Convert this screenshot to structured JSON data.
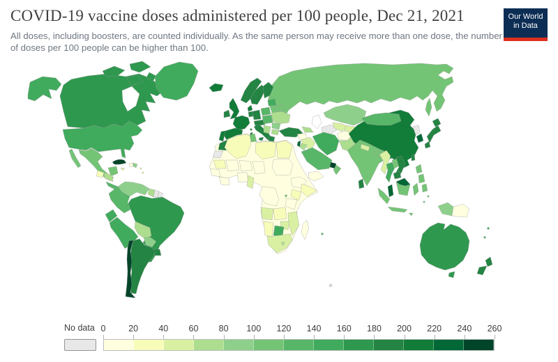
{
  "header": {
    "title": "COVID-19 vaccine doses administered per 100 people, Dec 21, 2021",
    "subtitle": "All doses, including boosters, are counted individually. As the same person may receive more than one dose, the number of doses per 100 people can be higher than 100.",
    "logo": {
      "line1": "Our World",
      "line2": "in Data",
      "bg_color": "#0d2e54",
      "accent_color": "#dc2f1f"
    }
  },
  "legend": {
    "no_data_label": "No data",
    "no_data_color": "#e8e8e8",
    "ticks": [
      "0",
      "20",
      "40",
      "60",
      "80",
      "100",
      "120",
      "140",
      "160",
      "180",
      "200",
      "220",
      "240",
      "260"
    ],
    "bin_colors": [
      "#ffffe0",
      "#f7fcb9",
      "#d9f0a3",
      "#addd8e",
      "#8ed08b",
      "#74c476",
      "#58b668",
      "#41ab5d",
      "#2f984f",
      "#238443",
      "#127c39",
      "#006837",
      "#004529"
    ]
  },
  "chart_data": {
    "type": "choropleth",
    "title": "COVID-19 vaccine doses administered per 100 people",
    "date": "Dec 21, 2021",
    "unit": "doses per 100 people",
    "scale": {
      "min": 0,
      "max": 260,
      "step": 20,
      "colors": [
        "#ffffe0",
        "#f7fcb9",
        "#d9f0a3",
        "#addd8e",
        "#8ed08b",
        "#74c476",
        "#58b668",
        "#41ab5d",
        "#2f984f",
        "#238443",
        "#127c39",
        "#006837",
        "#004529"
      ],
      "no_data_color": "#e8e8e8"
    },
    "regions": [
      {
        "id": "canada",
        "name": "Canada",
        "value": 170,
        "color": "#2f984f"
      },
      {
        "id": "usa",
        "name": "United States",
        "value": 150,
        "color": "#41ab5d"
      },
      {
        "id": "greenland",
        "name": "Greenland",
        "value": 150,
        "color": "#41ab5d"
      },
      {
        "id": "mexico",
        "name": "Mexico",
        "value": 110,
        "color": "#74c476"
      },
      {
        "id": "guatemala",
        "name": "Guatemala",
        "value": 30,
        "color": "#f7fcb9"
      },
      {
        "id": "honduras_nicaragua",
        "name": "Honduras & Nicaragua",
        "value": 70,
        "color": "#addd8e"
      },
      {
        "id": "costa_rica_panama",
        "name": "Costa Rica & Panama",
        "value": 130,
        "color": "#58b668"
      },
      {
        "id": "cuba",
        "name": "Cuba",
        "value": 250,
        "color": "#004529"
      },
      {
        "id": "jamaica",
        "name": "Jamaica",
        "value": 50,
        "color": "#d9f0a3"
      },
      {
        "id": "haiti",
        "name": "Haiti",
        "value": 10,
        "color": "#ffffe0"
      },
      {
        "id": "dominican_republic",
        "name": "Dominican Republic",
        "value": 90,
        "color": "#8ed08b"
      },
      {
        "id": "lesser_antilles",
        "name": "Lesser Antilles",
        "value": 50,
        "color": "#d9f0a3"
      },
      {
        "id": "venezuela",
        "name": "Venezuela",
        "value": 90,
        "color": "#8ed08b"
      },
      {
        "id": "colombia",
        "name": "Colombia",
        "value": 130,
        "color": "#58b668"
      },
      {
        "id": "guyana",
        "name": "Guyana",
        "value": 70,
        "color": "#addd8e"
      },
      {
        "id": "suriname",
        "name": "Suriname",
        "value": null,
        "color": "#e8e8e8"
      },
      {
        "id": "french_guiana",
        "name": "French Guiana",
        "value": null,
        "color": "#e8e8e8"
      },
      {
        "id": "ecuador",
        "name": "Ecuador",
        "value": 150,
        "color": "#41ab5d"
      },
      {
        "id": "peru",
        "name": "Peru",
        "value": 150,
        "color": "#41ab5d"
      },
      {
        "id": "brazil",
        "name": "Brazil",
        "value": 170,
        "color": "#2f984f"
      },
      {
        "id": "bolivia",
        "name": "Bolivia",
        "value": 70,
        "color": "#addd8e"
      },
      {
        "id": "paraguay",
        "name": "Paraguay",
        "value": 90,
        "color": "#8ed08b"
      },
      {
        "id": "chile",
        "name": "Chile",
        "value": 250,
        "color": "#004529"
      },
      {
        "id": "argentina",
        "name": "Argentina",
        "value": 190,
        "color": "#238443"
      },
      {
        "id": "uruguay",
        "name": "Uruguay",
        "value": 190,
        "color": "#238443"
      },
      {
        "id": "iceland",
        "name": "Iceland",
        "value": 210,
        "color": "#127c39"
      },
      {
        "id": "uk",
        "name": "United Kingdom",
        "value": 210,
        "color": "#127c39"
      },
      {
        "id": "ireland",
        "name": "Ireland",
        "value": 190,
        "color": "#238443"
      },
      {
        "id": "france",
        "name": "France",
        "value": 210,
        "color": "#127c39"
      },
      {
        "id": "spain",
        "name": "Spain",
        "value": 210,
        "color": "#127c39"
      },
      {
        "id": "portugal",
        "name": "Portugal",
        "value": 210,
        "color": "#127c39"
      },
      {
        "id": "norway",
        "name": "Norway",
        "value": 190,
        "color": "#238443"
      },
      {
        "id": "sweden",
        "name": "Sweden",
        "value": 190,
        "color": "#238443"
      },
      {
        "id": "finland",
        "name": "Finland",
        "value": 190,
        "color": "#238443"
      },
      {
        "id": "denmark",
        "name": "Denmark",
        "value": 210,
        "color": "#127c39"
      },
      {
        "id": "germany",
        "name": "Germany",
        "value": 190,
        "color": "#238443"
      },
      {
        "id": "benelux",
        "name": "Belgium & Netherlands",
        "value": 190,
        "color": "#238443"
      },
      {
        "id": "switzerland_austria",
        "name": "Switzerland & Austria",
        "value": 190,
        "color": "#238443"
      },
      {
        "id": "italy",
        "name": "Italy",
        "value": 190,
        "color": "#238443"
      },
      {
        "id": "poland",
        "name": "Poland",
        "value": 130,
        "color": "#58b668"
      },
      {
        "id": "czech_hungary",
        "name": "Czechia & Hungary",
        "value": 130,
        "color": "#58b668"
      },
      {
        "id": "baltics",
        "name": "Baltic states",
        "value": 150,
        "color": "#41ab5d"
      },
      {
        "id": "belarus",
        "name": "Belarus",
        "value": 110,
        "color": "#74c476"
      },
      {
        "id": "ukraine",
        "name": "Ukraine",
        "value": 70,
        "color": "#addd8e"
      },
      {
        "id": "romania",
        "name": "Romania",
        "value": 90,
        "color": "#8ed08b"
      },
      {
        "id": "balkans",
        "name": "Western Balkans",
        "value": 70,
        "color": "#addd8e"
      },
      {
        "id": "greece",
        "name": "Greece",
        "value": 190,
        "color": "#238443"
      },
      {
        "id": "turkey",
        "name": "Turkey",
        "value": 190,
        "color": "#238443"
      },
      {
        "id": "russia",
        "name": "Russia",
        "value": 110,
        "color": "#74c476"
      },
      {
        "id": "kazakhstan",
        "name": "Kazakhstan",
        "value": 90,
        "color": "#8ed08b"
      },
      {
        "id": "uzbekistan",
        "name": "Uzbekistan",
        "value": 50,
        "color": "#d9f0a3"
      },
      {
        "id": "turkmenistan",
        "name": "Turkmenistan",
        "value": null,
        "color": "#e8e8e8"
      },
      {
        "id": "kyrgyzstan_tajikistan",
        "name": "Kyrgyzstan & Tajikistan",
        "value": 50,
        "color": "#d9f0a3"
      },
      {
        "id": "georgia_azerbaijan",
        "name": "Caucasus",
        "value": 70,
        "color": "#addd8e"
      },
      {
        "id": "syria",
        "name": "Syria",
        "value": 10,
        "color": "#ffffe0"
      },
      {
        "id": "iraq",
        "name": "Iraq",
        "value": 50,
        "color": "#d9f0a3"
      },
      {
        "id": "iran",
        "name": "Iran",
        "value": 150,
        "color": "#41ab5d"
      },
      {
        "id": "israel",
        "name": "Israel",
        "value": 230,
        "color": "#006837"
      },
      {
        "id": "jordan",
        "name": "Jordan",
        "value": 70,
        "color": "#addd8e"
      },
      {
        "id": "saudi_arabia",
        "name": "Saudi Arabia",
        "value": 130,
        "color": "#58b668"
      },
      {
        "id": "uae",
        "name": "United Arab Emirates",
        "value": 250,
        "color": "#004529"
      },
      {
        "id": "oman",
        "name": "Oman",
        "value": 110,
        "color": "#74c476"
      },
      {
        "id": "yemen",
        "name": "Yemen",
        "value": 10,
        "color": "#ffffe0"
      },
      {
        "id": "morocco",
        "name": "Morocco",
        "value": 190,
        "color": "#238443"
      },
      {
        "id": "western_sahara",
        "name": "Western Sahara",
        "value": null,
        "color": "#e8e8e8"
      },
      {
        "id": "algeria",
        "name": "Algeria",
        "value": 30,
        "color": "#f7fcb9"
      },
      {
        "id": "tunisia",
        "name": "Tunisia",
        "value": 110,
        "color": "#74c476"
      },
      {
        "id": "libya",
        "name": "Libya",
        "value": 30,
        "color": "#f7fcb9"
      },
      {
        "id": "egypt",
        "name": "Egypt",
        "value": 30,
        "color": "#f7fcb9"
      },
      {
        "id": "sudan",
        "name": "Sudan",
        "value": 10,
        "color": "#ffffe0"
      },
      {
        "id": "mauritania",
        "name": "Mauritania",
        "value": 30,
        "color": "#f7fcb9"
      },
      {
        "id": "mali",
        "name": "Mali",
        "value": 10,
        "color": "#ffffe0"
      },
      {
        "id": "niger",
        "name": "Niger",
        "value": 10,
        "color": "#ffffe0"
      },
      {
        "id": "chad",
        "name": "Chad",
        "value": 10,
        "color": "#ffffe0"
      },
      {
        "id": "senegal_guinea",
        "name": "Senegal & Guinea",
        "value": 10,
        "color": "#ffffe0"
      },
      {
        "id": "ghana_ivory",
        "name": "Ghana & Côte d'Ivoire",
        "value": 10,
        "color": "#ffffe0"
      },
      {
        "id": "nigeria",
        "name": "Nigeria",
        "value": 10,
        "color": "#ffffe0"
      },
      {
        "id": "cameroon_gabon",
        "name": "Cameroon & Gabon",
        "value": 50,
        "color": "#d9f0a3"
      },
      {
        "id": "ethiopia",
        "name": "Ethiopia",
        "value": 10,
        "color": "#ffffe0"
      },
      {
        "id": "somalia",
        "name": "Somalia",
        "value": 30,
        "color": "#f7fcb9"
      },
      {
        "id": "kenya",
        "name": "Kenya",
        "value": 30,
        "color": "#f7fcb9"
      },
      {
        "id": "tanzania",
        "name": "Tanzania",
        "value": 10,
        "color": "#ffffe0"
      },
      {
        "id": "drc",
        "name": "Democratic Republic of Congo",
        "value": 10,
        "color": "#ffffe0"
      },
      {
        "id": "rwanda",
        "name": "Rwanda",
        "value": 110,
        "color": "#74c476"
      },
      {
        "id": "angola",
        "name": "Angola",
        "value": 50,
        "color": "#d9f0a3"
      },
      {
        "id": "zambia",
        "name": "Zambia",
        "value": 30,
        "color": "#f7fcb9"
      },
      {
        "id": "mozambique",
        "name": "Mozambique",
        "value": 50,
        "color": "#d9f0a3"
      },
      {
        "id": "zimbabwe",
        "name": "Zimbabwe",
        "value": 50,
        "color": "#d9f0a3"
      },
      {
        "id": "botswana",
        "name": "Botswana",
        "value": 150,
        "color": "#41ab5d"
      },
      {
        "id": "namibia",
        "name": "Namibia",
        "value": 30,
        "color": "#f7fcb9"
      },
      {
        "id": "south_africa",
        "name": "South Africa",
        "value": 50,
        "color": "#d9f0a3"
      },
      {
        "id": "lesotho",
        "name": "Lesotho",
        "value": 70,
        "color": "#addd8e"
      },
      {
        "id": "madagascar",
        "name": "Madagascar",
        "value": 10,
        "color": "#ffffe0"
      },
      {
        "id": "africa_other",
        "name": "Other African countries",
        "value": 10,
        "color": "#ffffe0"
      },
      {
        "id": "mauritius",
        "name": "Mauritius",
        "value": 130,
        "color": "#58b668"
      },
      {
        "id": "afghanistan",
        "name": "Afghanistan",
        "value": 10,
        "color": "#ffffe0"
      },
      {
        "id": "pakistan",
        "name": "Pakistan",
        "value": 70,
        "color": "#addd8e"
      },
      {
        "id": "india",
        "name": "India",
        "value": 110,
        "color": "#74c476"
      },
      {
        "id": "nepal",
        "name": "Nepal",
        "value": 50,
        "color": "#d9f0a3"
      },
      {
        "id": "bangladesh",
        "name": "Bangladesh",
        "value": 110,
        "color": "#74c476"
      },
      {
        "id": "sri_lanka",
        "name": "Sri Lanka",
        "value": 190,
        "color": "#238443"
      },
      {
        "id": "myanmar",
        "name": "Myanmar",
        "value": 50,
        "color": "#d9f0a3"
      },
      {
        "id": "thailand",
        "name": "Thailand",
        "value": 150,
        "color": "#41ab5d"
      },
      {
        "id": "laos",
        "name": "Laos",
        "value": 110,
        "color": "#74c476"
      },
      {
        "id": "vietnam",
        "name": "Vietnam",
        "value": 190,
        "color": "#238443"
      },
      {
        "id": "cambodia",
        "name": "Cambodia",
        "value": 190,
        "color": "#238443"
      },
      {
        "id": "malaysia",
        "name": "Malaysia",
        "value": 230,
        "color": "#006837"
      },
      {
        "id": "indonesia",
        "name": "Indonesia",
        "value": 110,
        "color": "#74c476"
      },
      {
        "id": "philippines",
        "name": "Philippines",
        "value": 110,
        "color": "#74c476"
      },
      {
        "id": "china",
        "name": "China",
        "value": 210,
        "color": "#127c39"
      },
      {
        "id": "mongolia",
        "name": "Mongolia",
        "value": 130,
        "color": "#58b668"
      },
      {
        "id": "north_korea",
        "name": "North Korea",
        "value": null,
        "color": "#e8e8e8"
      },
      {
        "id": "south_korea",
        "name": "South Korea",
        "value": 230,
        "color": "#006837"
      },
      {
        "id": "japan",
        "name": "Japan",
        "value": 190,
        "color": "#238443"
      },
      {
        "id": "taiwan",
        "name": "Taiwan",
        "value": 190,
        "color": "#238443"
      },
      {
        "id": "australia",
        "name": "Australia",
        "value": 170,
        "color": "#2f984f"
      },
      {
        "id": "new_zealand",
        "name": "New Zealand",
        "value": 190,
        "color": "#238443"
      },
      {
        "id": "papua_indonesia",
        "name": "Papua (Indonesia)",
        "value": 90,
        "color": "#8ed08b"
      },
      {
        "id": "papua_new_guinea",
        "name": "Papua New Guinea",
        "value": 10,
        "color": "#ffffe0"
      },
      {
        "id": "fiji",
        "name": "Fiji",
        "value": 150,
        "color": "#41ab5d"
      },
      {
        "id": "new_caledonia",
        "name": "New Caledonia",
        "value": 130,
        "color": "#58b668"
      },
      {
        "id": "fr_southern",
        "name": "French Southern Territories",
        "value": null,
        "color": "#e0e0e0"
      }
    ]
  }
}
